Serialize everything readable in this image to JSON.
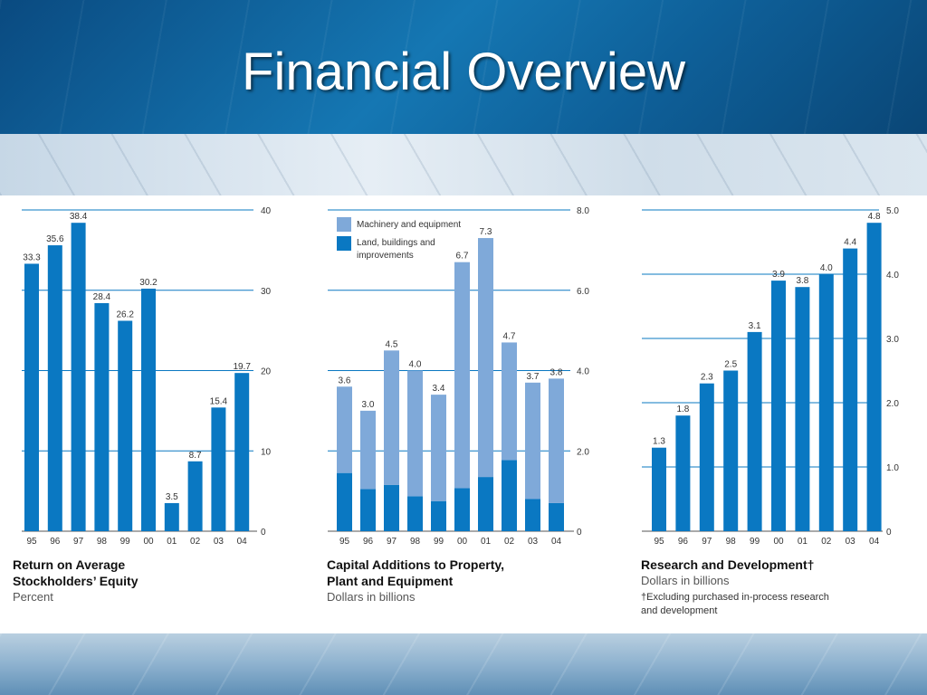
{
  "slide": {
    "title": "Financial Overview"
  },
  "colors": {
    "dark_bar": "#0a78c2",
    "light_bar": "#7fa9d9",
    "gridline": "#0a78c2",
    "tick_text": "#333333"
  },
  "chart_data": [
    {
      "type": "bar",
      "title": "Return on Average\nStockholders’ Equity",
      "subtitle": "Percent",
      "categories": [
        "95",
        "96",
        "97",
        "98",
        "99",
        "00",
        "01",
        "02",
        "03",
        "04"
      ],
      "values": [
        33.3,
        35.6,
        38.4,
        28.4,
        26.2,
        30.2,
        3.5,
        8.7,
        15.4,
        19.7
      ],
      "value_labels": [
        "33.3",
        "35.6",
        "38.4",
        "28.4",
        "26.2",
        "30.2",
        "3.5",
        "8.7",
        "15.4",
        "19.7"
      ],
      "ylim": [
        0,
        40
      ],
      "yticks": [
        0,
        10,
        20,
        30,
        40
      ],
      "ytick_labels": [
        "0",
        "10",
        "20",
        "30",
        "40"
      ],
      "grid": true
    },
    {
      "type": "bar",
      "stacked": true,
      "title": "Capital Additions to Property,\nPlant and Equipment",
      "subtitle": "Dollars in billions",
      "categories": [
        "95",
        "96",
        "97",
        "98",
        "99",
        "00",
        "01",
        "02",
        "03",
        "04"
      ],
      "series": [
        {
          "name": "Land, buildings and improvements",
          "values": [
            1.45,
            1.05,
            1.15,
            0.87,
            0.75,
            1.07,
            1.35,
            1.77,
            0.8,
            0.7
          ]
        },
        {
          "name": "Machinery and equipment",
          "values": [
            2.15,
            1.95,
            3.35,
            3.13,
            2.65,
            5.63,
            5.95,
            2.93,
            2.9,
            3.1
          ]
        }
      ],
      "totals": [
        3.6,
        3.0,
        4.5,
        4.0,
        3.4,
        6.7,
        7.3,
        4.7,
        3.7,
        3.8
      ],
      "value_labels": [
        "3.6",
        "3.0",
        "4.5",
        "4.0",
        "3.4",
        "6.7",
        "7.3",
        "4.7",
        "3.7",
        "3.8"
      ],
      "legend_labels": [
        "Machinery and equipment",
        "Land, buildings and\nimprovements"
      ],
      "legend_position": "top-left",
      "ylim": [
        0,
        8.0
      ],
      "yticks": [
        0,
        2.0,
        4.0,
        6.0,
        8.0
      ],
      "ytick_labels": [
        "0",
        "2.0",
        "4.0",
        "6.0",
        "8.0"
      ],
      "grid": true
    },
    {
      "type": "bar",
      "title": "Research and Development†",
      "subtitle": "Dollars in billions",
      "note": "†Excluding purchased in-process research\nand development",
      "categories": [
        "95",
        "96",
        "97",
        "98",
        "99",
        "00",
        "01",
        "02",
        "03",
        "04"
      ],
      "values": [
        1.3,
        1.8,
        2.3,
        2.5,
        3.1,
        3.9,
        3.8,
        4.0,
        4.4,
        4.8
      ],
      "value_labels": [
        "1.3",
        "1.8",
        "2.3",
        "2.5",
        "3.1",
        "3.9",
        "3.8",
        "4.0",
        "4.4",
        "4.8"
      ],
      "ylim": [
        0,
        5.0
      ],
      "yticks": [
        0,
        1.0,
        2.0,
        3.0,
        4.0,
        5.0
      ],
      "ytick_labels": [
        "0",
        "1.0",
        "2.0",
        "3.0",
        "4.0",
        "5.0"
      ],
      "grid": true
    }
  ]
}
